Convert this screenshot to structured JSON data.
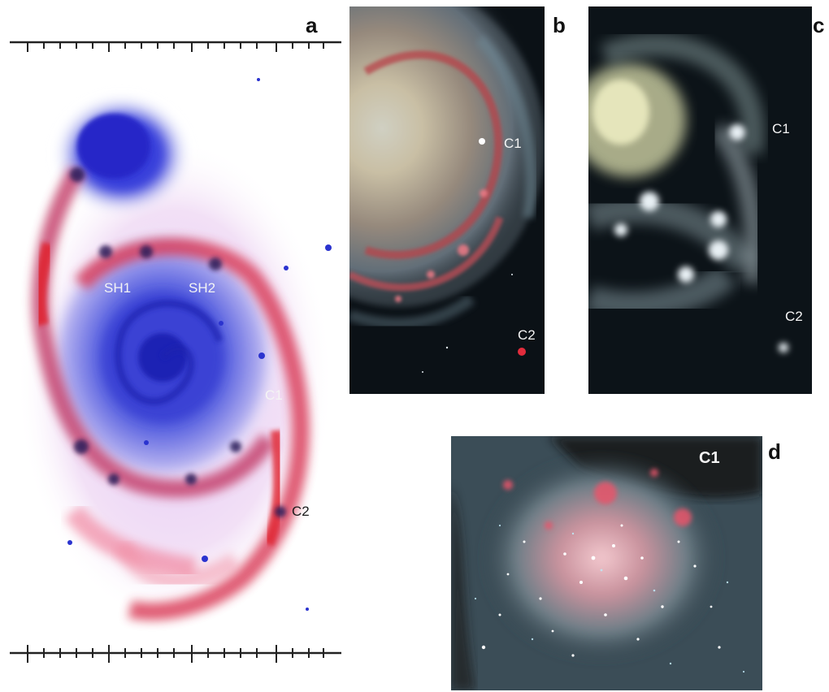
{
  "panels": {
    "a": {
      "letter": "a",
      "labels": {
        "sh1": "SH1",
        "sh2": "SH2",
        "c1": "C1",
        "c2": "C2"
      }
    },
    "b": {
      "letter": "b",
      "labels": {
        "c1": "C1",
        "c2": "C2"
      }
    },
    "c": {
      "letter": "c",
      "labels": {
        "c1": "C1",
        "c2": "C2"
      }
    },
    "d": {
      "letter": "d",
      "labels": {
        "c1": "C1"
      }
    }
  },
  "colors": {
    "panel_a_background": "#ffffff",
    "panel_a_disk": "#2f3bd6",
    "panel_a_arm": "#e0304e",
    "panel_bcd_background": "#0b1116"
  }
}
